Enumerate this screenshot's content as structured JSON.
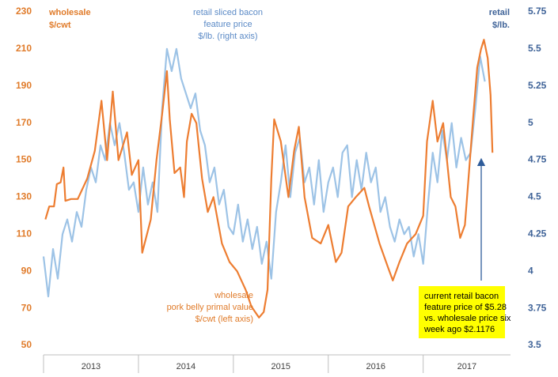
{
  "chart_data": {
    "type": "line",
    "y_label": [
      "wholesale",
      "$/cwt"
    ],
    "y2_label": [
      "retail",
      "$/lb."
    ],
    "annotations": [
      {
        "lines": [
          "retail sliced bacon",
          "feature price",
          "$/lb. (right axis)"
        ],
        "color": "#5b8ac6"
      },
      {
        "lines": [
          "wholesale",
          "pork belly primal value",
          "$/cwt (left axis)"
        ],
        "color": "#e07b2a"
      },
      {
        "lines": [
          "current retail bacon",
          "feature  price  of $5.28",
          "vs. wholesale price six",
          "week ago $2.1176"
        ],
        "color": "#000000",
        "background": "#ffff00"
      }
    ],
    "categories": [
      "2013",
      "2014",
      "2015",
      "2016",
      "2017"
    ],
    "xlim": [
      2013,
      2017.92
    ],
    "ylim": [
      50,
      230
    ],
    "yticks": [
      50,
      70,
      90,
      110,
      130,
      150,
      170,
      190,
      210,
      230
    ],
    "y2lim": [
      3.5,
      5.75
    ],
    "y2ticks": [
      3.5,
      3.75,
      4,
      4.25,
      4.5,
      4.75,
      5,
      5.25,
      5.5,
      5.75
    ],
    "left_axis_color": "#e07b2a",
    "right_axis_color": "#3f6398",
    "series": [
      {
        "name": "wholesale pork belly primal value",
        "color": "#ed7d31",
        "axis": "y",
        "x": [
          2013.02,
          2013.06,
          2013.11,
          2013.14,
          2013.18,
          2013.21,
          2013.23,
          2013.29,
          2013.36,
          2013.46,
          2013.54,
          2013.61,
          2013.67,
          2013.73,
          2013.79,
          2013.88,
          2013.93,
          2014.0,
          2014.04,
          2014.13,
          2014.19,
          2014.25,
          2014.3,
          2014.33,
          2014.38,
          2014.44,
          2014.48,
          2014.51,
          2014.56,
          2014.61,
          2014.67,
          2014.73,
          2014.79,
          2014.88,
          2014.96,
          2015.04,
          2015.13,
          2015.19,
          2015.27,
          2015.32,
          2015.36,
          2015.4,
          2015.43,
          2015.5,
          2015.58,
          2015.64,
          2015.69,
          2015.75,
          2015.83,
          2015.92,
          2016.0,
          2016.08,
          2016.14,
          2016.21,
          2016.29,
          2016.38,
          2016.43,
          2016.54,
          2016.63,
          2016.68,
          2016.75,
          2016.83,
          2016.92,
          2017.0,
          2017.04,
          2017.1,
          2017.15,
          2017.21,
          2017.29,
          2017.34,
          2017.39,
          2017.44,
          2017.53,
          2017.57,
          2017.61,
          2017.64,
          2017.68,
          2017.71,
          2017.73
        ],
        "values": [
          118,
          125,
          125,
          137,
          138,
          146,
          128,
          129,
          129,
          140,
          155,
          182,
          150,
          187,
          150,
          165,
          142,
          150,
          100,
          118,
          150,
          175,
          198,
          172,
          143,
          146,
          130,
          160,
          175,
          170,
          140,
          122,
          130,
          105,
          95,
          90,
          80,
          71,
          65,
          68,
          80,
          140,
          172,
          160,
          130,
          155,
          168,
          130,
          108,
          105,
          115,
          95,
          100,
          125,
          130,
          135,
          125,
          105,
          92,
          85,
          95,
          105,
          110,
          120,
          160,
          182,
          160,
          170,
          130,
          125,
          108,
          115,
          175,
          200,
          210,
          215,
          205,
          185,
          154
        ]
      },
      {
        "name": "retail sliced bacon feature price",
        "color": "#9dc3e6",
        "axis": "y2",
        "x": [
          2013.0,
          2013.05,
          2013.1,
          2013.15,
          2013.2,
          2013.25,
          2013.3,
          2013.35,
          2013.4,
          2013.45,
          2013.5,
          2013.55,
          2013.6,
          2013.65,
          2013.7,
          2013.75,
          2013.8,
          2013.85,
          2013.9,
          2013.95,
          2014.0,
          2014.05,
          2014.1,
          2014.15,
          2014.2,
          2014.25,
          2014.3,
          2014.35,
          2014.4,
          2014.45,
          2014.5,
          2014.55,
          2014.6,
          2014.65,
          2014.7,
          2014.75,
          2014.8,
          2014.85,
          2014.9,
          2014.95,
          2015.0,
          2015.05,
          2015.1,
          2015.15,
          2015.2,
          2015.25,
          2015.3,
          2015.35,
          2015.4,
          2015.45,
          2015.5,
          2015.55,
          2015.6,
          2015.65,
          2015.7,
          2015.75,
          2015.8,
          2015.85,
          2015.9,
          2015.95,
          2016.0,
          2016.05,
          2016.1,
          2016.15,
          2016.2,
          2016.25,
          2016.3,
          2016.35,
          2016.4,
          2016.45,
          2016.5,
          2016.55,
          2016.6,
          2016.65,
          2016.7,
          2016.75,
          2016.8,
          2016.85,
          2016.9,
          2016.95,
          2017.0,
          2017.05,
          2017.1,
          2017.15,
          2017.2,
          2017.25,
          2017.3,
          2017.35,
          2017.4,
          2017.45,
          2017.5,
          2017.55,
          2017.6,
          2017.65
        ],
        "values": [
          4.1,
          3.83,
          4.15,
          3.95,
          4.25,
          4.35,
          4.2,
          4.4,
          4.3,
          4.55,
          4.7,
          4.6,
          4.85,
          4.75,
          5.0,
          4.85,
          5.0,
          4.8,
          4.55,
          4.6,
          4.4,
          4.7,
          4.45,
          4.6,
          4.4,
          5.1,
          5.5,
          5.35,
          5.5,
          5.3,
          5.2,
          5.1,
          5.2,
          4.95,
          4.85,
          4.6,
          4.7,
          4.45,
          4.55,
          4.3,
          4.25,
          4.45,
          4.2,
          4.35,
          4.15,
          4.3,
          4.05,
          4.2,
          3.95,
          4.4,
          4.6,
          4.85,
          4.5,
          4.8,
          4.9,
          4.6,
          4.7,
          4.45,
          4.75,
          4.4,
          4.6,
          4.7,
          4.5,
          4.8,
          4.85,
          4.5,
          4.75,
          4.55,
          4.8,
          4.6,
          4.7,
          4.4,
          4.5,
          4.3,
          4.2,
          4.35,
          4.25,
          4.3,
          4.1,
          4.25,
          4.05,
          4.45,
          4.8,
          4.6,
          4.95,
          4.75,
          5.0,
          4.7,
          4.9,
          4.75,
          4.8,
          5.1,
          5.45,
          5.28
        ]
      }
    ]
  }
}
